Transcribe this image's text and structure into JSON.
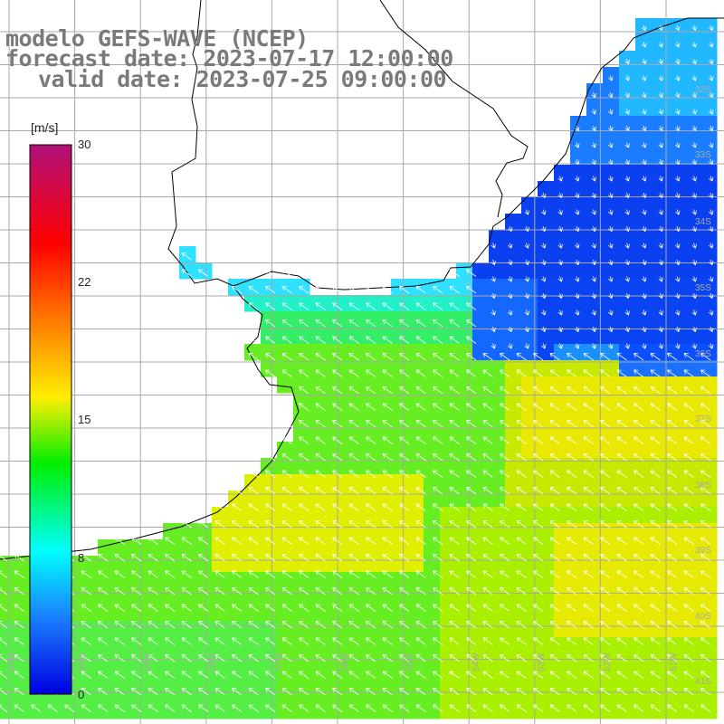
{
  "title": {
    "model": "modelo GEFS-WAVE (NCEP)",
    "forecast": "forecast date: 2023-07-17 12:00:00",
    "valid": "valid date: 2023-07-25 09:00:00"
  },
  "colorbar": {
    "unit": "[m/s]",
    "ticks": [
      "30",
      "22",
      "15",
      "8",
      "0"
    ],
    "colors": [
      "#b0107a",
      "#ff0000",
      "#ff6a00",
      "#ffee00",
      "#00ee00",
      "#00ffff",
      "#1060ff",
      "#0000e0"
    ]
  },
  "lat_labels": [
    "32S",
    "33S",
    "34S",
    "35S",
    "36S",
    "37S",
    "38S",
    "39S",
    "40S",
    "41S"
  ],
  "lon_labels": [
    "61W",
    "60W",
    "59W",
    "58W",
    "57W",
    "56W",
    "55W",
    "54W",
    "53W",
    "52W",
    "51W"
  ],
  "map_style": {
    "land_color": "#ffffff",
    "grid_color": "#a8a8a8",
    "coast_color": "#000000",
    "arrow_color": "#ffffff",
    "wind_direction": "from southeast over open sea, weak northwesterly over the northeast"
  }
}
